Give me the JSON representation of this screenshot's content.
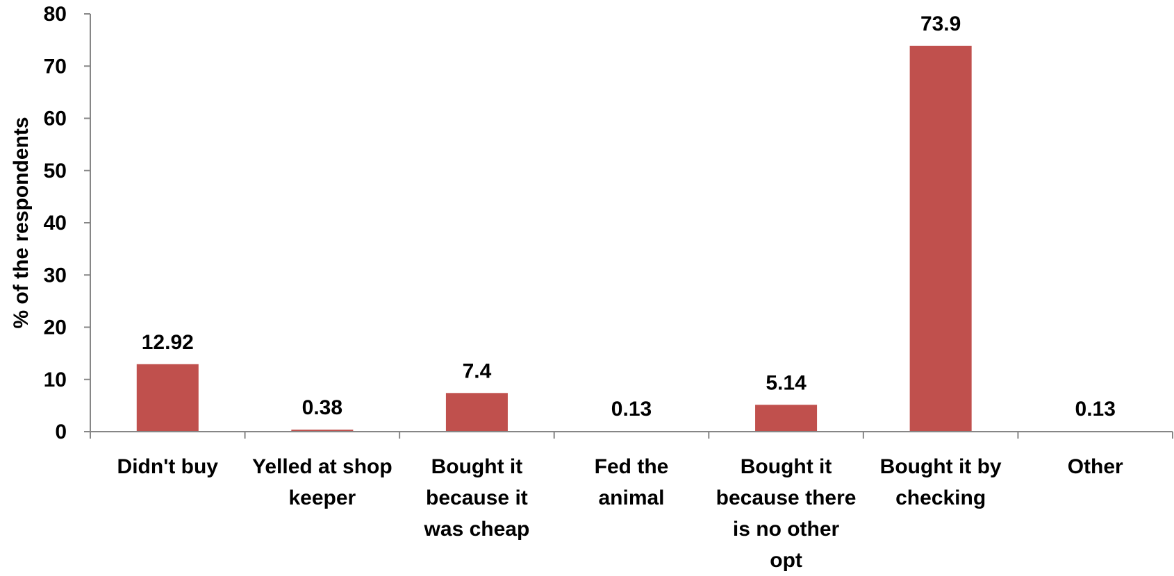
{
  "chart_data": {
    "type": "bar",
    "title": "",
    "xlabel": "",
    "ylabel": "% of the respondents",
    "ylim": [
      0,
      80
    ],
    "yticks": [
      0,
      10,
      20,
      30,
      40,
      50,
      60,
      70,
      80
    ],
    "grid": false,
    "legend": "none",
    "categories": [
      [
        "Didn't buy"
      ],
      [
        "Yelled at shop",
        "keeper"
      ],
      [
        "Bought it",
        "because it",
        "was cheap"
      ],
      [
        "Fed the",
        "animal"
      ],
      [
        "Bought it",
        "because there",
        "is no other",
        "opt"
      ],
      [
        "Bought it by",
        "checking"
      ],
      [
        "Other"
      ]
    ],
    "values": [
      12.92,
      0.38,
      7.4,
      0.13,
      5.14,
      73.9,
      0.13
    ],
    "value_labels": [
      "12.92",
      "0.38",
      "7.4",
      "0.13",
      "5.14",
      "73.9",
      "0.13"
    ],
    "bar_color": "#c0504d",
    "axis_color": "#868686"
  }
}
